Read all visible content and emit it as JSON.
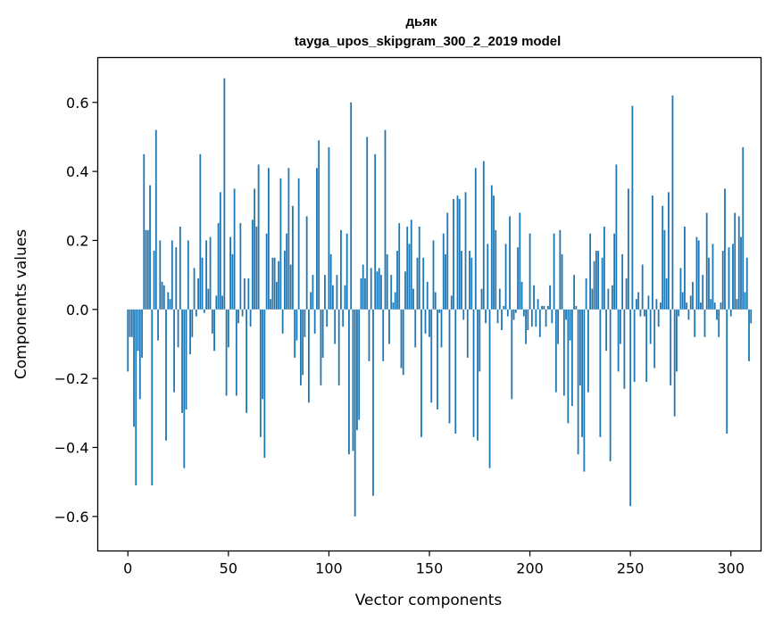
{
  "chart_data": {
    "type": "bar",
    "title": "дьяк",
    "subtitle": "tayga_upos_skipgram_300_2_2019 model",
    "xlabel": "Vector components",
    "ylabel": "Components values",
    "xlim": [
      -15,
      315
    ],
    "ylim": [
      -0.7,
      0.73
    ],
    "xticks": [
      0,
      50,
      100,
      150,
      200,
      250,
      300
    ],
    "yticks": [
      -0.6,
      -0.4,
      -0.2,
      0.0,
      0.2,
      0.4,
      0.6
    ],
    "xtick_labels": [
      "0",
      "50",
      "100",
      "150",
      "200",
      "250",
      "300"
    ],
    "ytick_labels": [
      "−0.6",
      "−0.4",
      "−0.2",
      "0.0",
      "0.2",
      "0.4",
      "0.6"
    ],
    "bar_color": "#1f77b4",
    "grid": false,
    "legend": "none",
    "values": [
      -0.18,
      -0.08,
      -0.08,
      -0.34,
      -0.51,
      -0.12,
      -0.26,
      -0.14,
      0.45,
      0.23,
      0.23,
      0.36,
      -0.51,
      0.17,
      0.52,
      -0.09,
      0.2,
      0.08,
      0.07,
      -0.38,
      0.05,
      0.03,
      0.2,
      -0.24,
      0.18,
      -0.11,
      0.24,
      -0.3,
      -0.46,
      -0.29,
      0.2,
      -0.13,
      -0.08,
      0.12,
      -0.02,
      0.09,
      0.45,
      0.15,
      -0.01,
      0.2,
      0.06,
      0.21,
      -0.07,
      -0.12,
      0.04,
      0.25,
      0.34,
      0.04,
      0.67,
      -0.25,
      -0.11,
      0.21,
      0.16,
      0.35,
      -0.25,
      -0.04,
      0.25,
      -0.02,
      0.09,
      -0.3,
      0.09,
      -0.05,
      0.26,
      0.35,
      0.24,
      0.42,
      -0.37,
      -0.26,
      -0.43,
      0.22,
      0.41,
      0.03,
      0.15,
      0.15,
      0.08,
      0.14,
      0.38,
      -0.07,
      0.17,
      0.22,
      0.41,
      0.13,
      0.3,
      -0.14,
      -0.09,
      0.38,
      -0.22,
      -0.19,
      -0.08,
      0.27,
      -0.27,
      0.05,
      0.1,
      -0.07,
      0.41,
      0.49,
      -0.22,
      -0.14,
      0.1,
      -0.05,
      0.47,
      0.16,
      0.07,
      -0.1,
      0.1,
      -0.22,
      0.23,
      -0.05,
      0.07,
      0.22,
      -0.42,
      0.6,
      -0.41,
      -0.6,
      -0.35,
      -0.32,
      0.09,
      0.13,
      0.09,
      0.5,
      -0.15,
      0.12,
      -0.54,
      0.45,
      0.11,
      0.12,
      0.1,
      -0.15,
      0.52,
      0.16,
      -0.1,
      0.1,
      0.02,
      0.05,
      0.17,
      0.25,
      -0.17,
      -0.19,
      0.11,
      0.24,
      0.19,
      0.26,
      0.06,
      -0.11,
      0.15,
      0.24,
      -0.37,
      0.15,
      -0.07,
      0.08,
      -0.08,
      -0.27,
      0.2,
      0.05,
      -0.29,
      -0.01,
      -0.11,
      0.22,
      0.16,
      0.28,
      -0.33,
      0.04,
      0.32,
      -0.36,
      0.33,
      0.32,
      0.17,
      -0.03,
      0.34,
      -0.14,
      0.17,
      0.15,
      -0.37,
      0.41,
      -0.38,
      -0.18,
      0.06,
      0.43,
      -0.04,
      0.19,
      -0.46,
      0.36,
      0.33,
      0.23,
      -0.04,
      0.06,
      -0.06,
      0.01,
      0.19,
      -0.02,
      0.27,
      -0.26,
      -0.03,
      -0.01,
      0.18,
      0.28,
      0.08,
      -0.02,
      -0.1,
      -0.06,
      0.22,
      -0.05,
      0.07,
      -0.05,
      0.03,
      -0.08,
      0.01,
      0.01,
      -0.05,
      0.01,
      0.07,
      -0.04,
      0.22,
      -0.24,
      -0.1,
      0.23,
      0.16,
      -0.25,
      -0.03,
      -0.33,
      -0.09,
      -0.28,
      0.1,
      0.01,
      -0.42,
      -0.22,
      -0.37,
      -0.47,
      0.09,
      -0.24,
      0.22,
      0.06,
      0.14,
      0.17,
      0.17,
      -0.37,
      0.15,
      0.24,
      -0.12,
      0.06,
      -0.44,
      0.07,
      0.22,
      0.42,
      -0.18,
      -0.1,
      0.16,
      -0.23,
      0.09,
      0.35,
      -0.57,
      0.59,
      -0.21,
      0.03,
      0.05,
      -0.02,
      0.13,
      -0.02,
      -0.21,
      0.04,
      -0.1,
      0.33,
      -0.17,
      0.03,
      -0.05,
      0.02,
      0.3,
      0.23,
      0.09,
      0.34,
      -0.22,
      0.62,
      -0.31,
      -0.18,
      -0.02,
      0.12,
      0.05,
      0.24,
      0.02,
      -0.03,
      0.04,
      0.08,
      -0.08,
      0.21,
      0.2,
      0.02,
      0.1,
      -0.08,
      0.28,
      0.15,
      0.03,
      0.19,
      0.02,
      -0.03,
      -0.08,
      0.02,
      0.17,
      0.35,
      -0.36,
      0.18,
      -0.02,
      0.19,
      0.28,
      0.03,
      0.27,
      0.21,
      0.47,
      0.05,
      0.15,
      -0.15,
      -0.04
    ]
  }
}
